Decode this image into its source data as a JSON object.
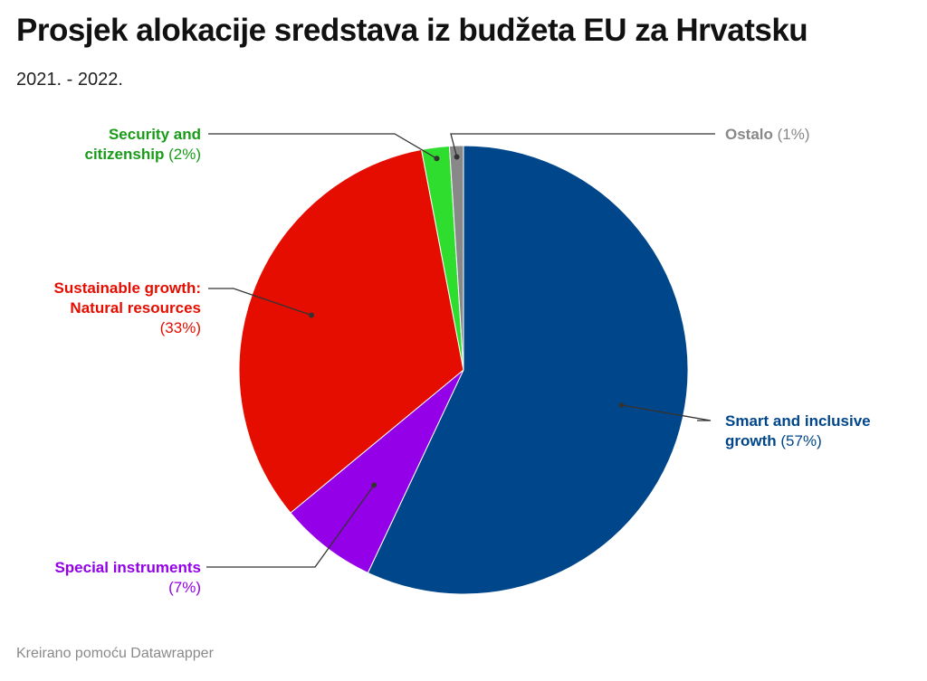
{
  "header": {
    "title": "Prosjek alokacije sredstava iz budžeta EU za Hrvatsku",
    "subtitle": "2021. - 2022."
  },
  "footer": {
    "credit": "Kreirano pomoću Datawrapper"
  },
  "chart_data": {
    "type": "pie",
    "slices": [
      {
        "label": "Smart and inclusive growth",
        "value": 57,
        "display": "(57%)",
        "color": "#00468b"
      },
      {
        "label": "Special instruments",
        "value": 7,
        "display": "(7%)",
        "color": "#9400e8"
      },
      {
        "label": "Sustainable growth: Natural resources",
        "value": 33,
        "display": "(33%)",
        "color": "#e50d00"
      },
      {
        "label": "Security and citizenship",
        "value": 2,
        "display": "(2%)",
        "color": "#2fdd2f"
      },
      {
        "label": "Ostalo",
        "value": 1,
        "display": "(1%)",
        "color": "#888888"
      }
    ],
    "label_text": {
      "smart_1": "Smart and inclusive",
      "smart_2": "growth",
      "special": "Special instruments",
      "sustain_1": "Sustainable growth:",
      "sustain_2": "Natural resources",
      "security_1": "Security and",
      "security_2": "citizenship",
      "ostalo": "Ostalo"
    }
  }
}
